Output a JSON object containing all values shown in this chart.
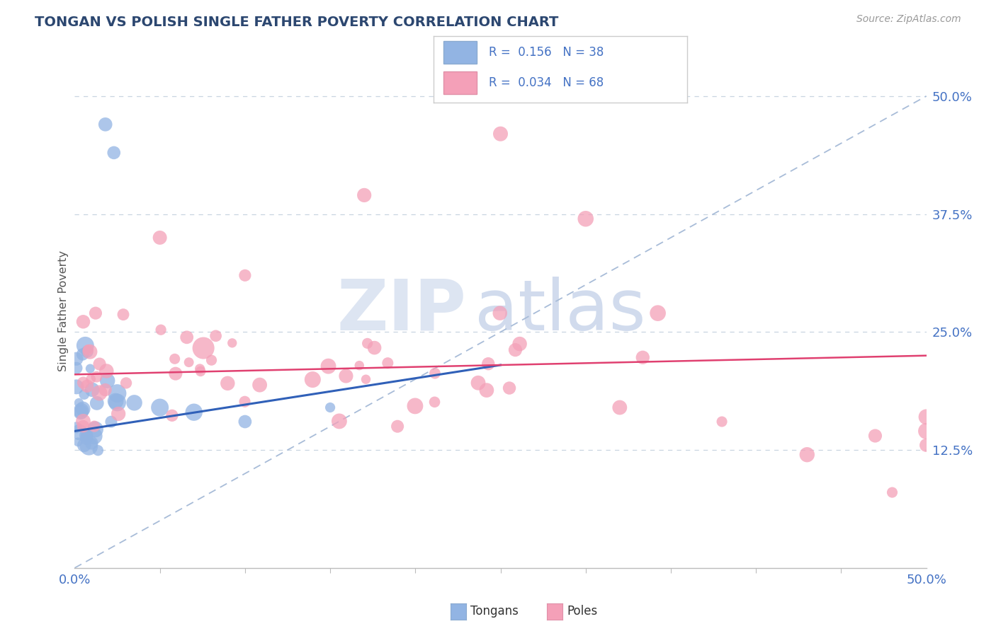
{
  "title": "TONGAN VS POLISH SINGLE FATHER POVERTY CORRELATION CHART",
  "source": "Source: ZipAtlas.com",
  "ylabel": "Single Father Poverty",
  "tongan_color": "#92b4e3",
  "pole_color": "#f4a0b8",
  "tongan_line_color": "#3060b8",
  "pole_line_color": "#e04070",
  "diagonal_color": "#a8bcd8",
  "grid_color": "#c8d4e0",
  "tick_color": "#4472c4",
  "title_color": "#2c4770",
  "xmin": 0.0,
  "xmax": 0.5,
  "ymin": 0.0,
  "ymax": 0.545,
  "right_yticks": [
    0.125,
    0.25,
    0.375,
    0.5
  ],
  "right_yticklabels": [
    "12.5%",
    "25.0%",
    "37.5%",
    "50.0%"
  ],
  "tongan_line_x0": 0.0,
  "tongan_line_y0": 0.145,
  "tongan_line_x1": 0.25,
  "tongan_line_y1": 0.215,
  "pole_line_x0": 0.0,
  "pole_line_y0": 0.205,
  "pole_line_x1": 0.5,
  "pole_line_y1": 0.225,
  "legend_label1": "Tongans",
  "legend_label2": "Poles",
  "legend_r1": "R =  0.156   N = 38",
  "legend_r2": "R =  0.034   N = 68"
}
